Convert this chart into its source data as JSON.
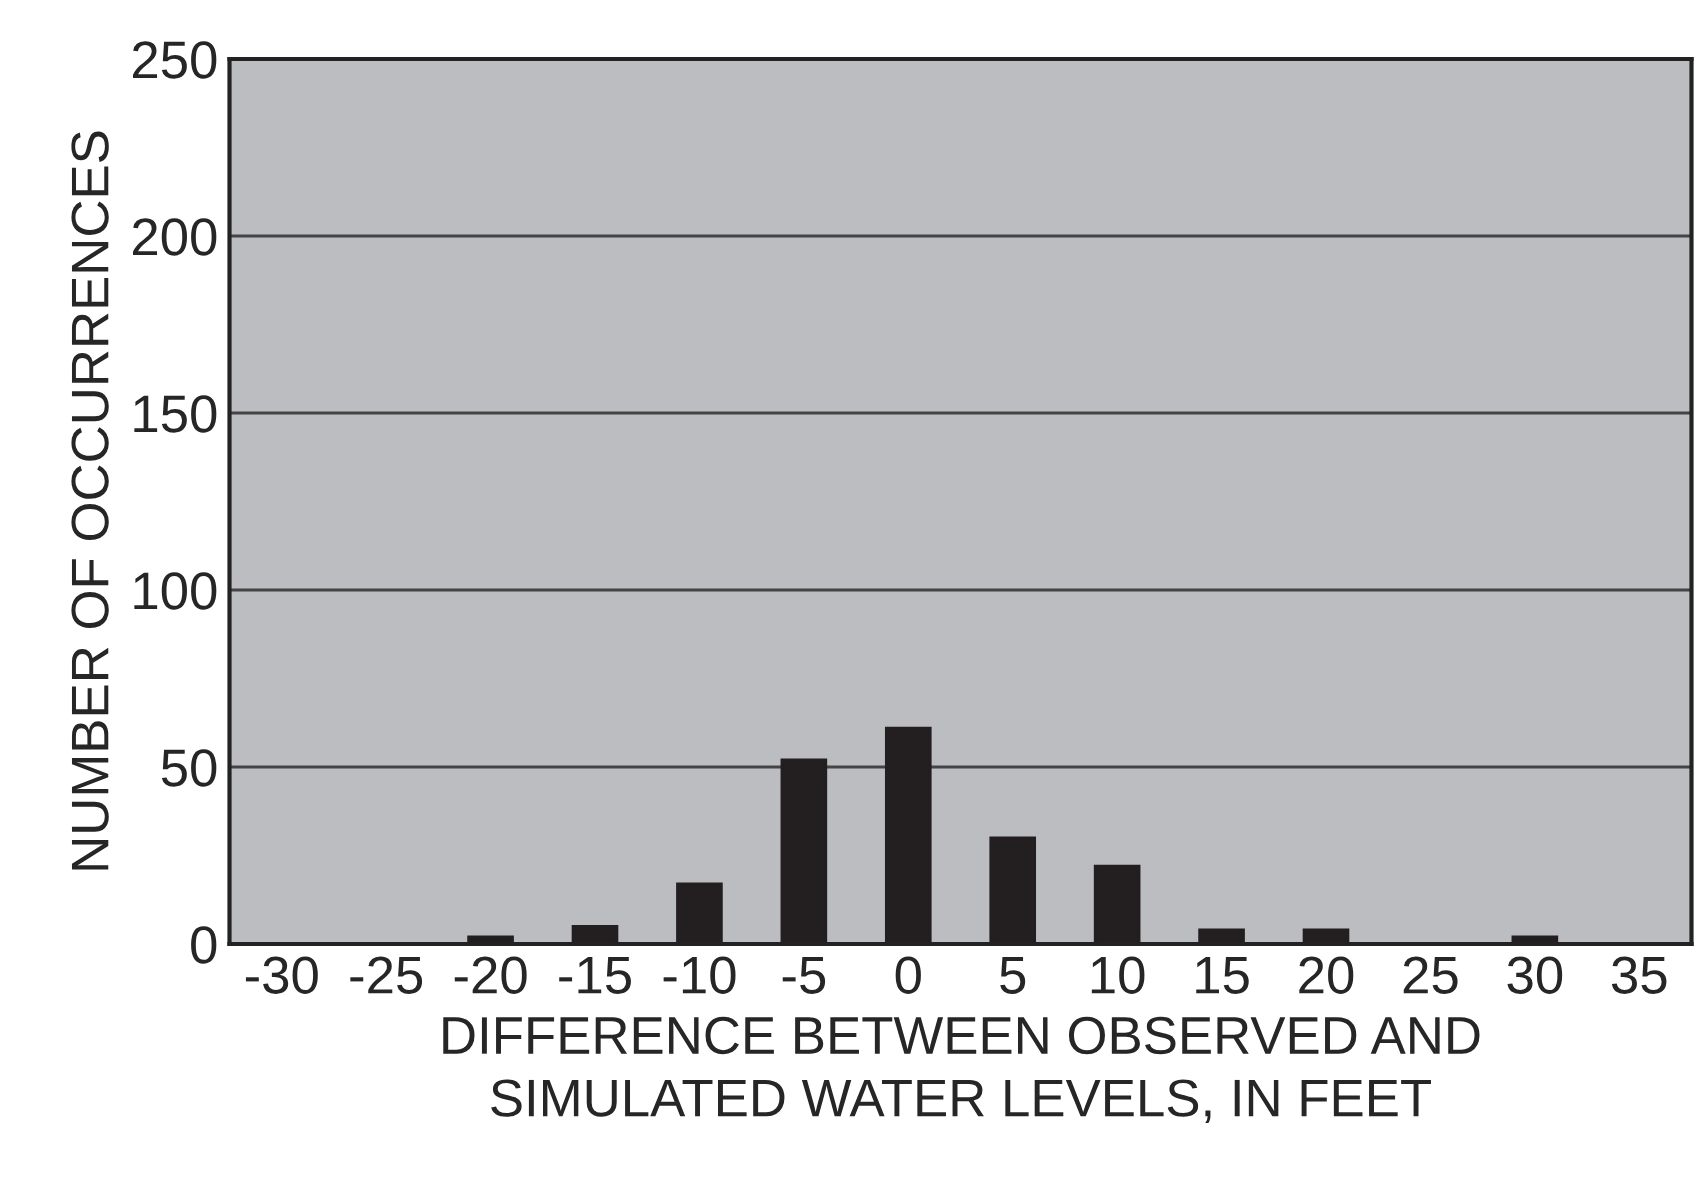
{
  "chart_data": {
    "type": "bar",
    "xlabel": "DIFFERENCE BETWEEN OBSERVED AND\nSIMULATED WATER LEVELS, IN FEET",
    "ylabel": "NUMBER OF OCCURRENCES",
    "categories": [
      "-30",
      "-25",
      "-20",
      "-15",
      "-10",
      "-5",
      "0",
      "5",
      "10",
      "15",
      "20",
      "25",
      "30",
      "35"
    ],
    "values": [
      0,
      0,
      2,
      5,
      17,
      52,
      61,
      30,
      22,
      4,
      4,
      0,
      2,
      0
    ],
    "color": "#231f20",
    "ylim": [
      0,
      250
    ],
    "yticks": [
      0,
      50,
      100,
      150,
      200,
      250
    ],
    "grid": "y",
    "legend": false
  }
}
